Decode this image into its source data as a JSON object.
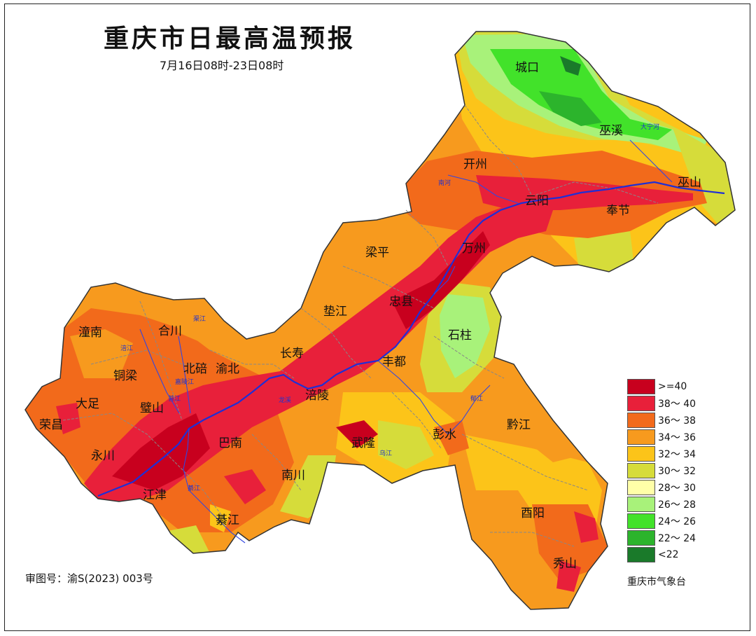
{
  "title": "重庆市日最高温预报",
  "subtitle": "7月16日08时-23日08时",
  "review_number": "审图号：渝S(2023) 003号",
  "agency": "重庆市气象台",
  "legend": [
    {
      "label": ">=40",
      "color": "#c8001e"
    },
    {
      "label": "38～ 40",
      "color": "#e8203a"
    },
    {
      "label": "36～ 38",
      "color": "#f26a1b"
    },
    {
      "label": "34～ 36",
      "color": "#f79a1e"
    },
    {
      "label": "32～ 34",
      "color": "#fcc419"
    },
    {
      "label": "30～ 32",
      "color": "#d6dc3a"
    },
    {
      "label": "28～ 30",
      "color": "#ffffa8"
    },
    {
      "label": "26～ 28",
      "color": "#a8f27a"
    },
    {
      "label": "24～ 26",
      "color": "#42e22a"
    },
    {
      "label": "22～ 24",
      "color": "#2cb42c"
    },
    {
      "label": "<22",
      "color": "#1a7a2a"
    }
  ],
  "places": {
    "chengkou": "城口",
    "wuxi": "巫溪",
    "kaizhou": "开州",
    "yunyang": "云阳",
    "wushan": "巫山",
    "fengjie": "奉节",
    "wanzhou": "万州",
    "liangping": "梁平",
    "zhongxian": "忠县",
    "shizhu": "石柱",
    "dianjiang": "垫江",
    "changshou": "长寿",
    "fengdu": "丰都",
    "fuling": "涪陵",
    "tongnan": "潼南",
    "hechuan": "合川",
    "beibei": "北碚",
    "yubei": "渝北",
    "tongliang": "铜梁",
    "dazu": "大足",
    "bishan": "璧山",
    "rongchang": "荣昌",
    "yongchuan": "永川",
    "banan": "巴南",
    "jiangjin": "江津",
    "nanchuan": "南川",
    "qijiang": "綦江",
    "wulong": "武隆",
    "pengshui": "彭水",
    "qianjiang": "黔江",
    "youyang": "酉阳",
    "xiushan": "秀山"
  },
  "rivers": {
    "daning": "大宁河",
    "nanhe": "南河",
    "wujiang": "乌江",
    "jialing": "嘉陵江",
    "fujiang": "涪江",
    "qijiang_r": "綦江",
    "yujiang": "郁江",
    "longxi": "龙溪",
    "pujiang": "普江",
    "mimi": "渠江"
  }
}
